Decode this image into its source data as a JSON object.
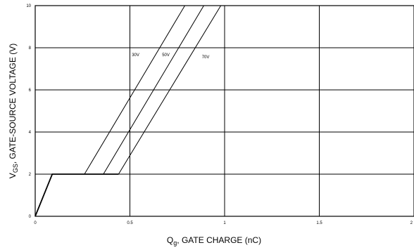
{
  "chart_data": {
    "type": "line",
    "title": "",
    "xlabel": "Q",
    "xlabel_sub": "g",
    "xlabel_rest": ", GATE CHARGE (nC)",
    "ylabel": "V",
    "ylabel_sub": "GS",
    "ylabel_rest": ", GATE-SOURCE VOLTAGE (V)",
    "xlim": [
      0,
      2
    ],
    "ylim": [
      0,
      10
    ],
    "xticks": [
      "0",
      "0.5",
      "1",
      "1.5",
      "2"
    ],
    "yticks": [
      "0",
      "2",
      "4",
      "6",
      "8",
      "10"
    ],
    "grid": true,
    "series": [
      {
        "name": "30V",
        "label_at": [
          0.51,
          7.6
        ],
        "x": [
          0,
          0.09,
          0.26,
          0.79
        ],
        "y": [
          0,
          2,
          2,
          10
        ]
      },
      {
        "name": "50V",
        "label_at": [
          0.67,
          7.6
        ],
        "x": [
          0,
          0.09,
          0.36,
          0.89
        ],
        "y": [
          0,
          2,
          2,
          10
        ]
      },
      {
        "name": "70V",
        "label_at": [
          0.88,
          7.5
        ],
        "x": [
          0,
          0.09,
          0.44,
          0.98
        ],
        "y": [
          0,
          2,
          2,
          10
        ]
      }
    ],
    "baseline": {
      "x": [
        0,
        0.09,
        0.44
      ],
      "y": [
        0,
        2,
        2
      ]
    }
  }
}
